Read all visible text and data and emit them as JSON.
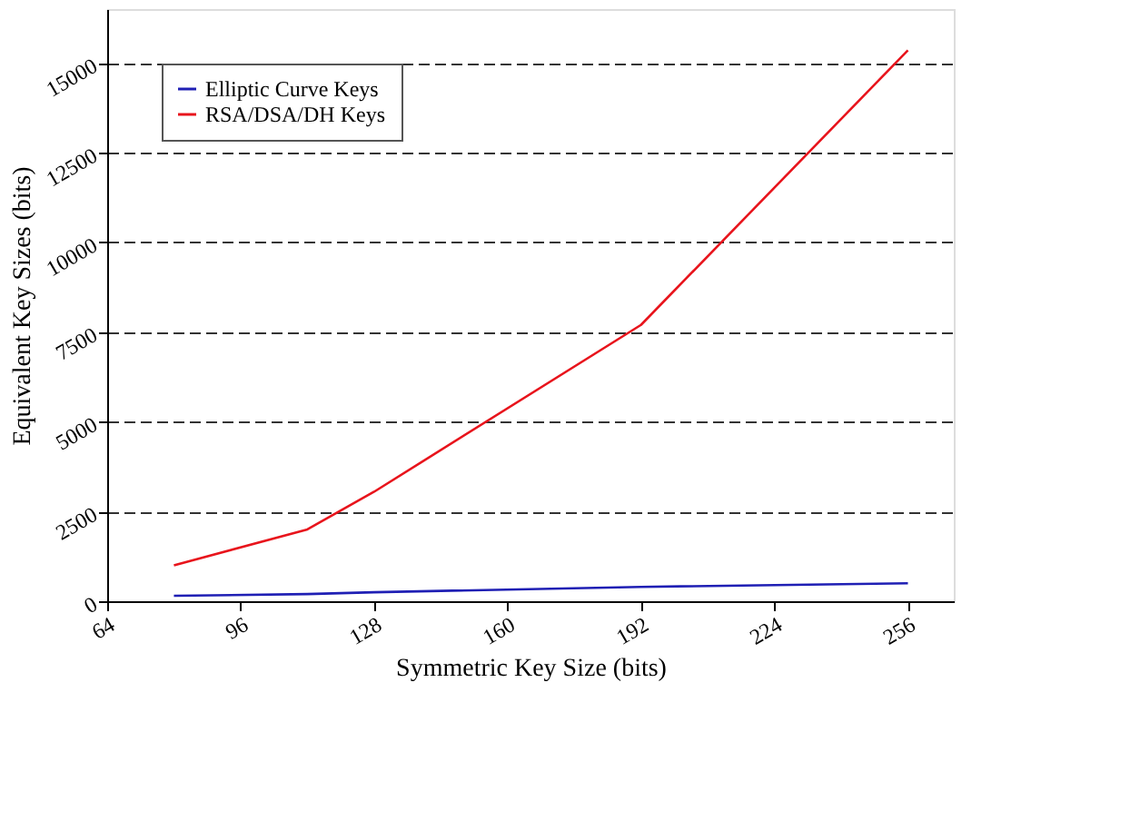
{
  "chart_data": {
    "type": "line",
    "xlabel": "Symmetric Key Size (bits)",
    "ylabel": "Equivalent Key Sizes (bits)",
    "x": [
      80,
      112,
      128,
      192,
      256
    ],
    "series": [
      {
        "name": "Elliptic Curve Keys",
        "color": "#1f1fb4",
        "values": [
          150,
          200,
          250,
          400,
          500
        ]
      },
      {
        "name": "RSA/DSA/DH Keys",
        "color": "#e8141c",
        "values": [
          1000,
          2000,
          3050,
          7700,
          15350
        ]
      }
    ],
    "xlim": [
      64,
      267
    ],
    "xticks": [
      64,
      96,
      128,
      160,
      192,
      224,
      256
    ],
    "ylim": [
      0,
      16500
    ],
    "yticks": [
      0,
      2500,
      5000,
      7500,
      10000,
      12500,
      15000
    ],
    "grid": "y",
    "legend": "top left",
    "marker": "none",
    "line_style": "solid"
  }
}
